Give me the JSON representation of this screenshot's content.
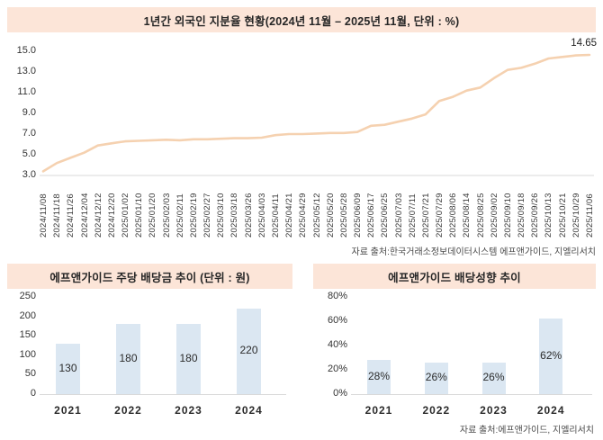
{
  "colors": {
    "banner_bg": "#fce5d8",
    "line": "#f5d1b0",
    "bar_fill": "#dbe7f2",
    "axis_line": "#d9d9d9",
    "text_dark": "#262626",
    "source_text": "#4a4a4a"
  },
  "chart_data": [
    {
      "type": "line",
      "title": "1년간 외국인 지분율 현황(2024년 11월 – 2025년 11월, 단위 : %)",
      "source": "자료 출처:한국거래소정보데이터시스템 에프앤가이드, 지엘리서치",
      "end_annotation": "14.65",
      "ylim": [
        3.0,
        15.0
      ],
      "yticks": [
        15.0,
        13.0,
        11.0,
        9.0,
        7.0,
        5.0,
        3.0
      ],
      "ytick_labels": [
        "15.0",
        "13.0",
        "11.0",
        "9.0",
        "7.0",
        "5.0",
        "3.0"
      ],
      "x": [
        "2024/11/08",
        "2024/11/18",
        "2024/11/26",
        "2024/12/04",
        "2024/12/12",
        "2024/12/20",
        "2025/01/02",
        "2025/01/10",
        "2025/01/20",
        "2025/02/03",
        "2025/02/11",
        "2025/02/19",
        "2025/02/27",
        "2025/03/10",
        "2025/03/18",
        "2025/03/26",
        "2025/04/03",
        "2025/04/11",
        "2025/04/21",
        "2025/04/29",
        "2025/05/12",
        "2025/05/20",
        "2025/05/28",
        "2025/06/09",
        "2025/06/17",
        "2025/06/25",
        "2025/07/03",
        "2025/07/11",
        "2025/07/21",
        "2025/07/29",
        "2025/08/06",
        "2025/08/14",
        "2025/08/25",
        "2025/09/02",
        "2025/09/10",
        "2025/09/18",
        "2025/09/26",
        "2025/10/13",
        "2025/10/21",
        "2025/10/29",
        "2025/11/06"
      ],
      "values": [
        3.4,
        4.2,
        4.7,
        5.2,
        5.9,
        6.1,
        6.3,
        6.35,
        6.4,
        6.45,
        6.4,
        6.5,
        6.5,
        6.55,
        6.6,
        6.6,
        6.65,
        6.9,
        7.0,
        7.0,
        7.05,
        7.1,
        7.1,
        7.2,
        7.8,
        7.9,
        8.2,
        8.5,
        8.9,
        10.2,
        10.6,
        11.2,
        11.5,
        12.4,
        13.2,
        13.4,
        13.8,
        14.3,
        14.45,
        14.6,
        14.65
      ],
      "grid": false,
      "legend": "none"
    },
    {
      "type": "bar",
      "title": "에프앤가이드 주당 배당금 추이 (단위 : 원)",
      "categories": [
        "2021",
        "2022",
        "2023",
        "2024"
      ],
      "values": [
        130,
        180,
        180,
        220
      ],
      "value_labels": [
        "130",
        "180",
        "180",
        "220"
      ],
      "ylim": [
        0,
        250
      ],
      "yticks": [
        0,
        50,
        100,
        150,
        200,
        250
      ],
      "ytick_labels": [
        "0",
        "50",
        "100",
        "150",
        "200",
        "250"
      ],
      "grid": false,
      "legend": "none"
    },
    {
      "type": "bar",
      "title": "에프앤가이드 배당성향 추이",
      "source": "자료 출처:에프앤가이드, 지엘리서치",
      "categories": [
        "2021",
        "2022",
        "2023",
        "2024"
      ],
      "values": [
        28,
        26,
        26,
        62
      ],
      "value_labels": [
        "28%",
        "26%",
        "26%",
        "62%"
      ],
      "ylim": [
        0,
        80
      ],
      "yticks": [
        0,
        20,
        40,
        60,
        80
      ],
      "ytick_labels": [
        "0%",
        "20%",
        "40%",
        "60%",
        "80%"
      ],
      "grid": false,
      "legend": "none"
    }
  ]
}
